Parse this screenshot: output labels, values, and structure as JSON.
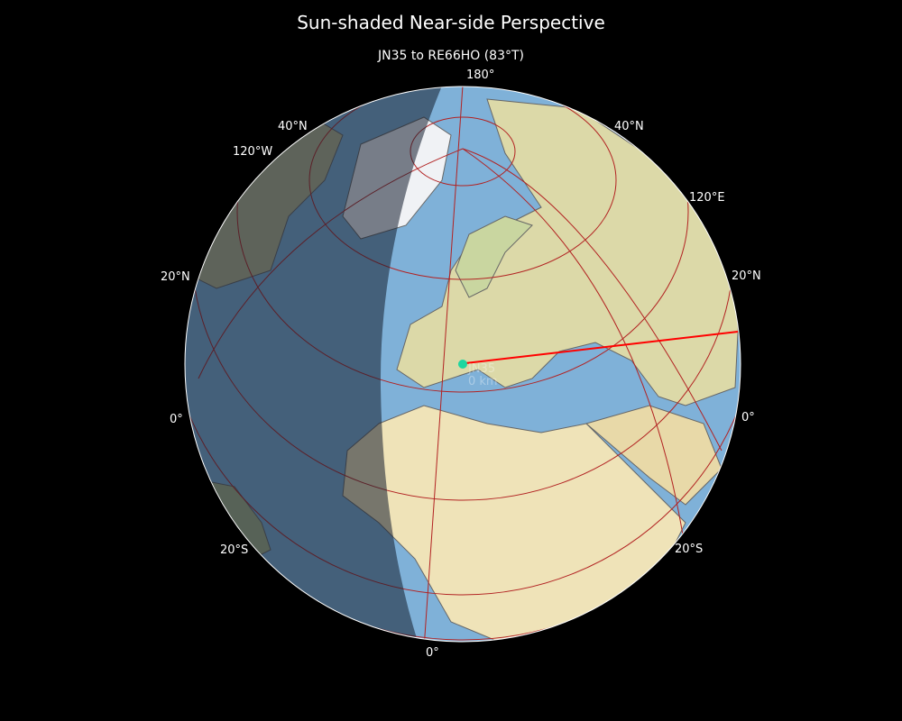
{
  "title": "Sun-shaded Near-side Perspective",
  "subtitle": "JN35 to RE66HO (83°T)",
  "map": {
    "projection": "near-side perspective",
    "shading": "sun-shaded (day/night terminator)",
    "origin": {
      "label": "JN35",
      "distance": "0 km",
      "color": "#1ed6a0"
    },
    "path_color": "#ff0000",
    "graticule_color": "#b22222",
    "ocean_color": "#7fb1d8",
    "land_color": "#e8e0b0",
    "labels": {
      "top": "180°",
      "lat40n_left": "40°N",
      "lat40n_right": "40°N",
      "lon120w": "120°W",
      "lon120e": "120°E",
      "lat20n_left": "20°N",
      "lat20n_right": "20°N",
      "eq_left": "0°",
      "eq_right": "0°",
      "lat20s_left": "20°S",
      "lat20s_right": "20°S",
      "bottom": "0°"
    }
  }
}
